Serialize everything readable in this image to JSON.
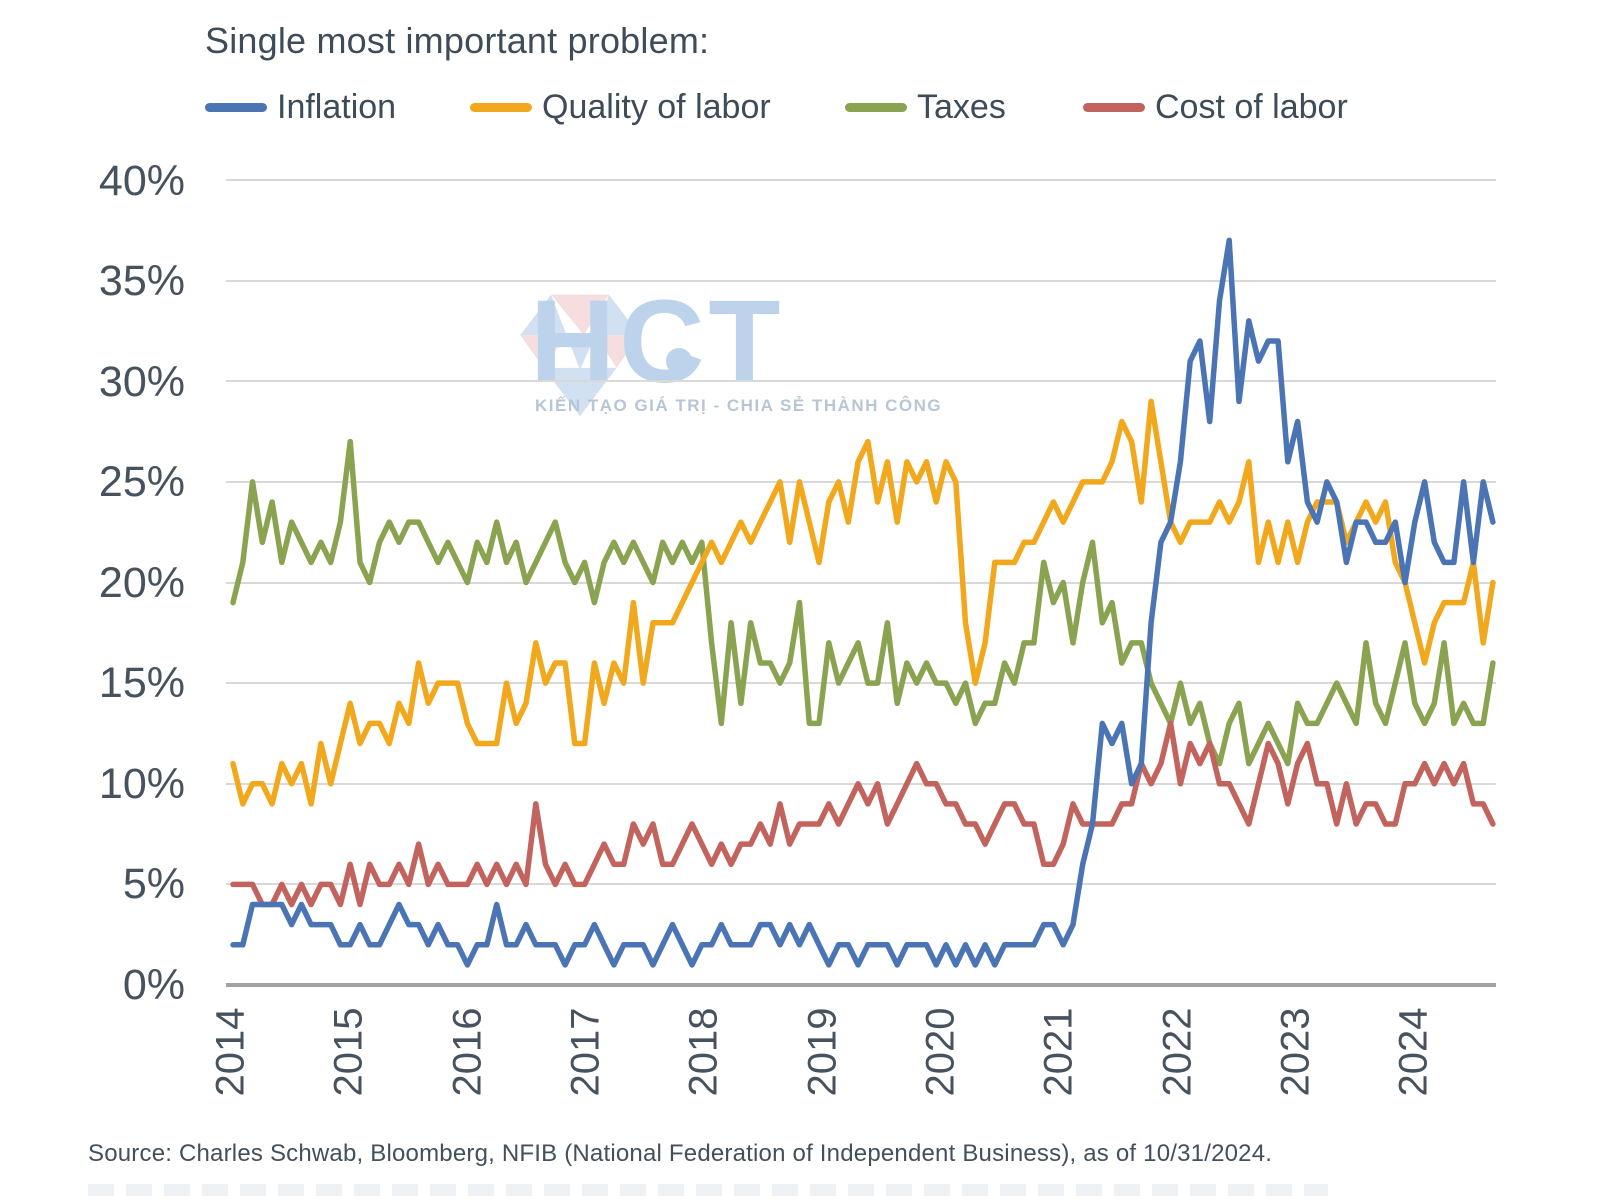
{
  "title": "Single most important problem:",
  "source": "Source: Charles Schwab, Bloomberg, NFIB (National Federation of Independent Business), as of 10/31/2024.",
  "watermark": {
    "text": "HCT",
    "tagline": "KIẾN TẠO GIÁ TRỊ - CHIA SẺ THÀNH CÔNG",
    "logo_colors": {
      "light_blue": "#c9dcf0",
      "pink": "#f5d8da"
    }
  },
  "chart_data": {
    "type": "line",
    "title": "Single most important problem:",
    "x_unit": "month",
    "x_start": "2014-01",
    "x_end": "2024-10",
    "x_tick_labels": [
      "2014",
      "2015",
      "2016",
      "2017",
      "2018",
      "2019",
      "2020",
      "2021",
      "2022",
      "2023",
      "2024"
    ],
    "y_tick_labels": [
      "0%",
      "5%",
      "10%",
      "15%",
      "20%",
      "25%",
      "30%",
      "35%",
      "40%"
    ],
    "ylim": [
      0,
      40
    ],
    "grid": true,
    "legend_position": "top",
    "series": [
      {
        "name": "Inflation",
        "color": "#4a74b4",
        "values": [
          2,
          2,
          4,
          4,
          4,
          4,
          3,
          4,
          3,
          3,
          3,
          2,
          2,
          3,
          2,
          2,
          3,
          4,
          3,
          3,
          2,
          3,
          2,
          2,
          1,
          2,
          2,
          4,
          2,
          2,
          3,
          2,
          2,
          2,
          1,
          2,
          2,
          3,
          2,
          1,
          2,
          2,
          2,
          1,
          2,
          3,
          2,
          1,
          2,
          2,
          3,
          2,
          2,
          2,
          3,
          3,
          2,
          3,
          2,
          3,
          2,
          1,
          2,
          2,
          1,
          2,
          2,
          2,
          1,
          2,
          2,
          2,
          1,
          2,
          1,
          2,
          1,
          2,
          1,
          2,
          2,
          2,
          2,
          3,
          3,
          2,
          3,
          6,
          8,
          13,
          12,
          13,
          10,
          11,
          18,
          22,
          23,
          26,
          31,
          32,
          28,
          34,
          37,
          29,
          33,
          31,
          32,
          32,
          26,
          28,
          24,
          23,
          25,
          24,
          21,
          23,
          23,
          22,
          22,
          23,
          20,
          23,
          25,
          22,
          21,
          21,
          25,
          21,
          25,
          23
        ]
      },
      {
        "name": "Quality of labor",
        "color": "#f2a81d",
        "values": [
          11,
          9,
          10,
          10,
          9,
          11,
          10,
          11,
          9,
          12,
          10,
          12,
          14,
          12,
          13,
          13,
          12,
          14,
          13,
          16,
          14,
          15,
          15,
          15,
          13,
          12,
          12,
          12,
          15,
          13,
          14,
          17,
          15,
          16,
          16,
          12,
          12,
          16,
          14,
          16,
          15,
          19,
          15,
          18,
          18,
          18,
          19,
          20,
          21,
          22,
          21,
          22,
          23,
          22,
          23,
          24,
          25,
          22,
          25,
          23,
          21,
          24,
          25,
          23,
          26,
          27,
          24,
          26,
          23,
          26,
          25,
          26,
          24,
          26,
          25,
          18,
          15,
          17,
          21,
          21,
          21,
          22,
          22,
          23,
          24,
          23,
          24,
          25,
          25,
          25,
          26,
          28,
          27,
          24,
          29,
          26,
          23,
          22,
          23,
          23,
          23,
          24,
          23,
          24,
          26,
          21,
          23,
          21,
          23,
          21,
          23,
          24,
          24,
          24,
          22,
          23,
          24,
          23,
          24,
          21,
          20,
          18,
          16,
          18,
          19,
          19,
          19,
          21,
          17,
          20
        ]
      },
      {
        "name": "Taxes",
        "color": "#8aa350",
        "values": [
          19,
          21,
          25,
          22,
          24,
          21,
          23,
          22,
          21,
          22,
          21,
          23,
          27,
          21,
          20,
          22,
          23,
          22,
          23,
          23,
          22,
          21,
          22,
          21,
          20,
          22,
          21,
          23,
          21,
          22,
          20,
          21,
          22,
          23,
          21,
          20,
          21,
          19,
          21,
          22,
          21,
          22,
          21,
          20,
          22,
          21,
          22,
          21,
          22,
          17,
          13,
          18,
          14,
          18,
          16,
          16,
          15,
          16,
          19,
          13,
          13,
          17,
          15,
          16,
          17,
          15,
          15,
          18,
          14,
          16,
          15,
          16,
          15,
          15,
          14,
          15,
          13,
          14,
          14,
          16,
          15,
          17,
          17,
          21,
          19,
          20,
          17,
          20,
          22,
          18,
          19,
          16,
          17,
          17,
          15,
          14,
          13,
          15,
          13,
          14,
          12,
          11,
          13,
          14,
          11,
          12,
          13,
          12,
          11,
          14,
          13,
          13,
          14,
          15,
          14,
          13,
          17,
          14,
          13,
          15,
          17,
          14,
          13,
          14,
          17,
          13,
          14,
          13,
          13,
          16
        ]
      },
      {
        "name": "Cost of labor",
        "color": "#c2635d",
        "values": [
          5,
          5,
          5,
          4,
          4,
          5,
          4,
          5,
          4,
          5,
          5,
          4,
          6,
          4,
          6,
          5,
          5,
          6,
          5,
          7,
          5,
          6,
          5,
          5,
          5,
          6,
          5,
          6,
          5,
          6,
          5,
          9,
          6,
          5,
          6,
          5,
          5,
          6,
          7,
          6,
          6,
          8,
          7,
          8,
          6,
          6,
          7,
          8,
          7,
          6,
          7,
          6,
          7,
          7,
          8,
          7,
          9,
          7,
          8,
          8,
          8,
          9,
          8,
          9,
          10,
          9,
          10,
          8,
          9,
          10,
          11,
          10,
          10,
          9,
          9,
          8,
          8,
          7,
          8,
          9,
          9,
          8,
          8,
          6,
          6,
          7,
          9,
          8,
          8,
          8,
          8,
          9,
          9,
          11,
          10,
          11,
          13,
          10,
          12,
          11,
          12,
          10,
          10,
          9,
          8,
          10,
          12,
          11,
          9,
          11,
          12,
          10,
          10,
          8,
          10,
          8,
          9,
          9,
          8,
          8,
          10,
          10,
          11,
          10,
          11,
          10,
          11,
          9,
          9,
          8
        ]
      }
    ]
  }
}
